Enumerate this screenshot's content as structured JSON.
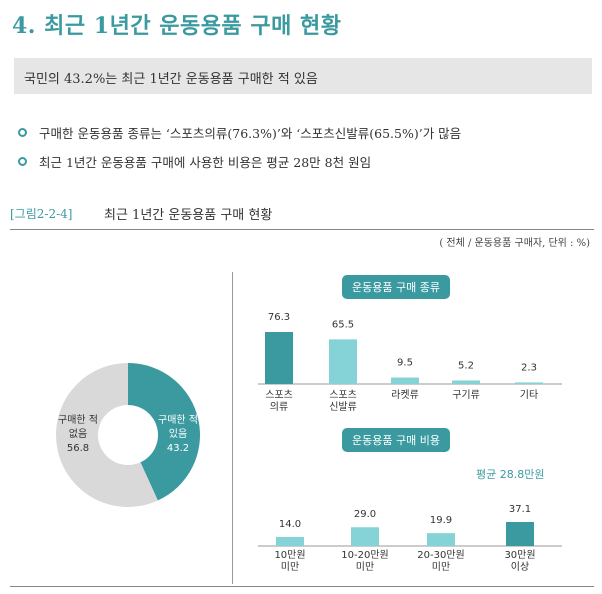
{
  "section_title": "4. 최근 1년간 운동용품 구매 현황",
  "summary": "국민의 43.2%는 최근 1년간 운동용품 구매한 적 있음",
  "bullets": [
    "구매한 운동용품 종류는 ‘스포츠의류(76.3%)’와 ‘스포츠신발류(65.5%)’가 많음",
    "최근 1년간 운동용품 구매에 사용한 비용은 평균 28만 8천 원임"
  ],
  "figure": {
    "label": "[그림2-2-4]",
    "title": "최근 1년간 운동용품 구매 현황",
    "unit": "( 전체 / 운동용품 구매자, 단위 : %)"
  },
  "colors": {
    "accent": "#3a9aa0",
    "light": "#86d3d7",
    "grey": "#d9d9d9"
  },
  "chart_data": [
    {
      "type": "pie",
      "categories": [
        "구매한 적 있음",
        "구매한 적 없음"
      ],
      "values": [
        43.2,
        56.8
      ],
      "labels": [
        [
          "구매한 적",
          "있음",
          "43.2"
        ],
        [
          "구매한 적",
          "없음",
          "56.8"
        ]
      ]
    },
    {
      "type": "bar",
      "title": "운동용품 구매 종류",
      "categories": [
        [
          "스포츠",
          "의류"
        ],
        [
          "스포츠",
          "신발류"
        ],
        [
          "라켓류"
        ],
        [
          "구기류"
        ],
        [
          "기타"
        ]
      ],
      "values": [
        76.3,
        65.5,
        9.5,
        5.2,
        2.3
      ]
    },
    {
      "type": "bar",
      "title": "운동용품 구매 비용",
      "annotation": "평균 28.8만원",
      "categories": [
        [
          "10만원",
          "미만"
        ],
        [
          "10-20만원",
          "미만"
        ],
        [
          "20-30만원",
          "미만"
        ],
        [
          "30만원",
          "이상"
        ]
      ],
      "values": [
        14.0,
        29.0,
        19.9,
        37.1
      ]
    }
  ]
}
